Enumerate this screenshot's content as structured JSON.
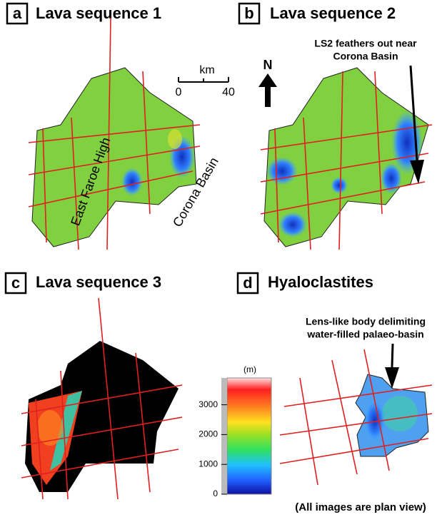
{
  "panels": [
    {
      "letter": "a",
      "title": "Lava sequence 1"
    },
    {
      "letter": "b",
      "title": "Lava sequence 2"
    },
    {
      "letter": "c",
      "title": "Lava sequence 3"
    },
    {
      "letter": "d",
      "title": "Hyaloclastites"
    }
  ],
  "labels": {
    "high": "East Faroe High",
    "basin": "Corona Basin",
    "north": "N"
  },
  "annotations": {
    "b": [
      "LS2 feathers out near",
      "Corona Basin"
    ],
    "d": [
      "Lens-like body delimiting",
      "water-filled palaeo-basin"
    ]
  },
  "scale_bar": {
    "unit": "km",
    "xlim": [
      0,
      40
    ],
    "xticks": [
      0,
      40
    ]
  },
  "colorbar": {
    "unit": "(m)",
    "ylim": [
      0,
      3900
    ],
    "yticks": [
      0,
      1000,
      2000,
      3000
    ]
  },
  "footer": "(All images are plan view)"
}
